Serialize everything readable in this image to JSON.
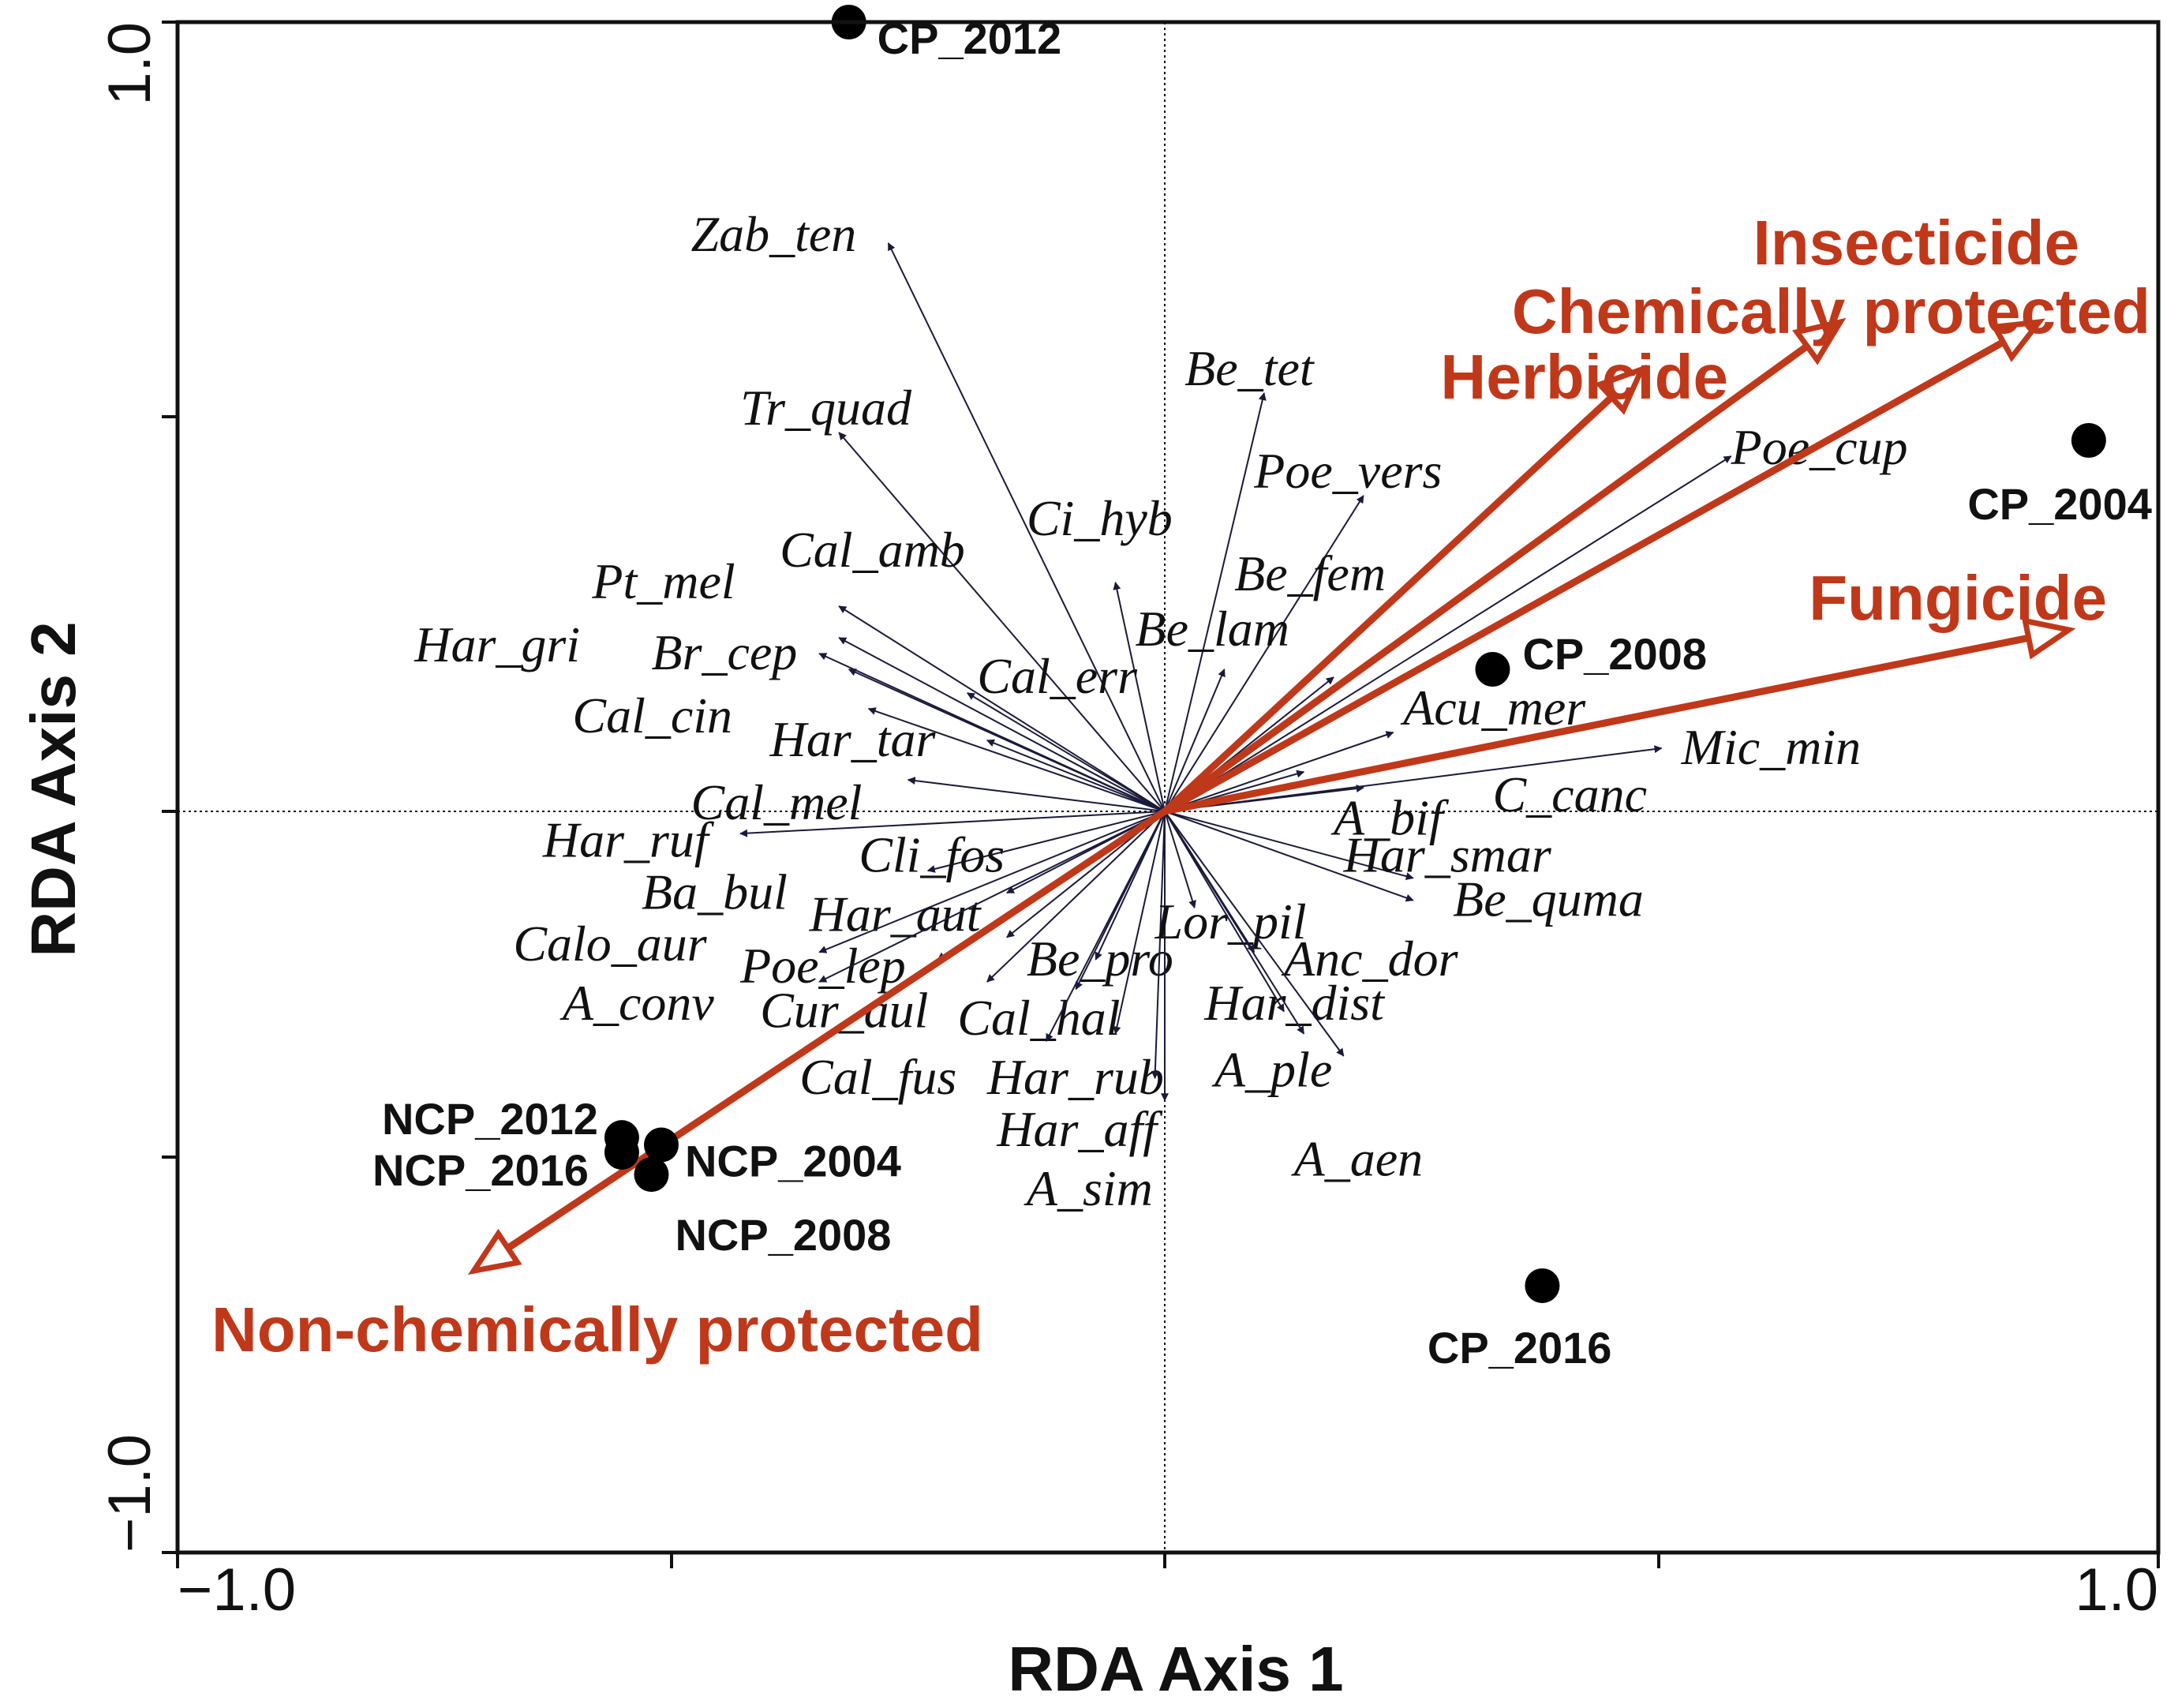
{
  "chart_data": {
    "type": "scatter",
    "subtype": "rda-biplot",
    "xlabel": "RDA Axis 1",
    "ylabel": "RDA Axis 2",
    "xlim": [
      -1.0,
      1.0
    ],
    "ylim": [
      -1.0,
      1.0
    ],
    "x_tick_labels": [
      "−1.0",
      "1.0"
    ],
    "y_tick_labels": [
      "1.0",
      "−1.0"
    ],
    "colors": {
      "env": "#c0381a",
      "species": "#1a1a3a",
      "axis": "#111111"
    },
    "env_vectors": [
      {
        "name": "Insecticide",
        "x": 0.88,
        "y": 0.62
      },
      {
        "name": "Chemically protected",
        "x": 0.68,
        "y": 0.62
      },
      {
        "name": "Herbicide",
        "x": 0.48,
        "y": 0.56
      },
      {
        "name": "Fungicide",
        "x": 0.91,
        "y": 0.23
      },
      {
        "name": "Non-chemically protected",
        "x": -0.7,
        "y": -0.62
      }
    ],
    "samples": [
      {
        "name": "CP_2012",
        "x": -0.32,
        "y": 1.0
      },
      {
        "name": "CP_2004",
        "x": 0.93,
        "y": 0.47
      },
      {
        "name": "CP_2008",
        "x": 0.33,
        "y": 0.18
      },
      {
        "name": "CP_2016",
        "x": 0.38,
        "y": -0.64
      },
      {
        "name": "NCP_2012",
        "x": -0.55,
        "y": -0.44
      },
      {
        "name": "NCP_2016",
        "x": -0.55,
        "y": -0.46
      },
      {
        "name": "NCP_2004",
        "x": -0.51,
        "y": -0.45
      },
      {
        "name": "NCP_2008",
        "x": -0.52,
        "y": -0.49
      }
    ],
    "species": [
      {
        "name": "Zab_ten",
        "x": -0.28,
        "y": 0.72,
        "lx": -0.48,
        "ly": 0.73
      },
      {
        "name": "Tr_quad",
        "x": -0.33,
        "y": 0.48,
        "lx": -0.43,
        "ly": 0.51
      },
      {
        "name": "Be_tet",
        "x": 0.1,
        "y": 0.53,
        "lx": 0.02,
        "ly": 0.56
      },
      {
        "name": "Poe_vers",
        "x": 0.2,
        "y": 0.4,
        "lx": 0.09,
        "ly": 0.43
      },
      {
        "name": "Ci_hyb",
        "x": -0.05,
        "y": 0.29,
        "lx": -0.14,
        "ly": 0.37
      },
      {
        "name": "Be_fem",
        "x": 0.17,
        "y": 0.17,
        "lx": 0.07,
        "ly": 0.3
      },
      {
        "name": "Be_lam",
        "x": 0.06,
        "y": 0.18,
        "lx": -0.03,
        "ly": 0.23
      },
      {
        "name": "Cal_amb",
        "x": -0.33,
        "y": 0.26,
        "lx": -0.39,
        "ly": 0.33
      },
      {
        "name": "Pt_mel",
        "x": -0.33,
        "y": 0.22,
        "lx": -0.58,
        "ly": 0.29
      },
      {
        "name": "Har_gri",
        "x": -0.35,
        "y": 0.2,
        "lx": -0.76,
        "ly": 0.21
      },
      {
        "name": "Br_cep",
        "x": -0.32,
        "y": 0.18,
        "lx": -0.52,
        "ly": 0.2
      },
      {
        "name": "Cal_err",
        "x": -0.2,
        "y": 0.15,
        "lx": -0.19,
        "ly": 0.17
      },
      {
        "name": "Cal_cin",
        "x": -0.3,
        "y": 0.13,
        "lx": -0.6,
        "ly": 0.12
      },
      {
        "name": "Har_tar",
        "x": -0.18,
        "y": 0.09,
        "lx": -0.4,
        "ly": 0.09
      },
      {
        "name": "Cal_mel",
        "x": -0.26,
        "y": 0.04,
        "lx": -0.48,
        "ly": 0.01
      },
      {
        "name": "Har_ruf",
        "x": -0.43,
        "y": -0.03,
        "lx": -0.63,
        "ly": -0.04
      },
      {
        "name": "Cli_fos",
        "x": -0.24,
        "y": -0.08,
        "lx": -0.31,
        "ly": -0.06
      },
      {
        "name": "Ba_bul",
        "x": -0.16,
        "y": -0.11,
        "lx": -0.53,
        "ly": -0.11
      },
      {
        "name": "Har_aut",
        "x": -0.16,
        "y": -0.17,
        "lx": -0.36,
        "ly": -0.14
      },
      {
        "name": "Calo_aur",
        "x": -0.35,
        "y": -0.19,
        "lx": -0.66,
        "ly": -0.18
      },
      {
        "name": "Poe_lep",
        "x": -0.23,
        "y": -0.2,
        "lx": -0.43,
        "ly": -0.21
      },
      {
        "name": "A_conv",
        "x": -0.35,
        "y": -0.23,
        "lx": -0.61,
        "ly": -0.26
      },
      {
        "name": "Cur_aul",
        "x": -0.18,
        "y": -0.23,
        "lx": -0.41,
        "ly": -0.27
      },
      {
        "name": "Be_pro",
        "x": -0.07,
        "y": -0.2,
        "lx": -0.14,
        "ly": -0.2
      },
      {
        "name": "Cal_hal",
        "x": -0.09,
        "y": -0.24,
        "lx": -0.21,
        "ly": -0.28
      },
      {
        "name": "Cal_fus",
        "x": -0.12,
        "y": -0.31,
        "lx": -0.37,
        "ly": -0.36
      },
      {
        "name": "Har_rub",
        "x": -0.05,
        "y": -0.3,
        "lx": -0.18,
        "ly": -0.36
      },
      {
        "name": "Har_aff",
        "x": -0.01,
        "y": -0.36,
        "lx": -0.17,
        "ly": -0.43
      },
      {
        "name": "A_sim",
        "x": 0.0,
        "y": -0.39,
        "lx": -0.14,
        "ly": -0.51
      },
      {
        "name": "Lor_pil",
        "x": 0.03,
        "y": -0.13,
        "lx": -0.01,
        "ly": -0.15
      },
      {
        "name": "Anc_dor",
        "x": 0.09,
        "y": -0.19,
        "lx": 0.12,
        "ly": -0.2
      },
      {
        "name": "Har_dist",
        "x": 0.12,
        "y": -0.27,
        "lx": 0.04,
        "ly": -0.26
      },
      {
        "name": "A_ple",
        "x": 0.18,
        "y": -0.33,
        "lx": 0.05,
        "ly": -0.35
      },
      {
        "name": "A_aen",
        "x": 0.14,
        "y": -0.3,
        "lx": 0.13,
        "ly": -0.47
      },
      {
        "name": "Acu_mer",
        "x": 0.23,
        "y": 0.1,
        "lx": 0.24,
        "ly": 0.13
      },
      {
        "name": "Mic_min",
        "x": 0.5,
        "y": 0.08,
        "lx": 0.52,
        "ly": 0.08
      },
      {
        "name": "Poe_cup",
        "x": 0.57,
        "y": 0.45,
        "lx": 0.57,
        "ly": 0.46
      },
      {
        "name": "A_bif",
        "x": 0.14,
        "y": 0.05,
        "lx": 0.17,
        "ly": -0.01
      },
      {
        "name": "C_canc",
        "x": 0.2,
        "y": 0.03,
        "lx": 0.33,
        "ly": 0.02
      },
      {
        "name": "Har_smar",
        "x": 0.25,
        "y": -0.09,
        "lx": 0.18,
        "ly": -0.06
      },
      {
        "name": "Be_quma",
        "x": 0.25,
        "y": -0.12,
        "lx": 0.29,
        "ly": -0.12
      }
    ]
  }
}
